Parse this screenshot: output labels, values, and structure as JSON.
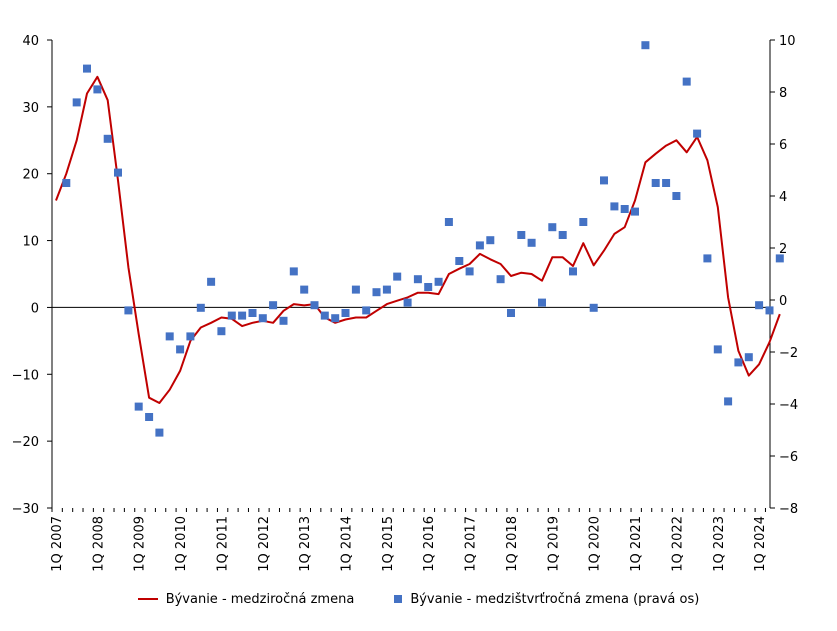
{
  "chart_data": {
    "type": "line",
    "title": "",
    "xlabel": "",
    "ylabel": "",
    "ylabel_right": "",
    "ylim": [
      -30,
      40
    ],
    "y2lim": [
      -8,
      10
    ],
    "yticks": [
      -30,
      -20,
      -10,
      0,
      10,
      20,
      30,
      40
    ],
    "y2ticks": [
      -8,
      -6,
      -4,
      -2,
      0,
      2,
      4,
      6,
      8,
      10
    ],
    "x_tick_labels": [
      "1Q 2007",
      "1Q 2008",
      "1Q 2009",
      "1Q 2010",
      "1Q 2011",
      "1Q 2012",
      "1Q 2013",
      "1Q 2014",
      "1Q 2015",
      "1Q 2016",
      "1Q 2017",
      "1Q 2018",
      "1Q 2019",
      "1Q 2020",
      "1Q 2021",
      "1Q 2022",
      "1Q 2023",
      "1Q 2024"
    ],
    "colors": {
      "line": "#c00000",
      "markers": "#4472c4"
    },
    "series": [
      {
        "name": "Bývanie - medziročná zmena",
        "kind": "line",
        "axis": "left",
        "values": [
          16,
          20,
          25,
          32,
          34.5,
          31,
          19,
          6,
          -4,
          -13.5,
          -14.3,
          -12.3,
          -9.5,
          -5,
          -3,
          -2.3,
          -1.5,
          -1.7,
          -2.8,
          -2.3,
          -2,
          -2.3,
          -0.5,
          0.5,
          0.3,
          0.5,
          -1.5,
          -2.3,
          -1.8,
          -1.5,
          -1.5,
          -0.5,
          0.5,
          1,
          1.5,
          2.2,
          2.2,
          2,
          5,
          5.8,
          6.5,
          8,
          7.2,
          6.5,
          4.7,
          5.2,
          5,
          4,
          7.5,
          7.5,
          6.2,
          9.6,
          6.3,
          8.5,
          11,
          12,
          16,
          21.7,
          23,
          24.2,
          25,
          23.2,
          25.5,
          22,
          15,
          1.5,
          -6.5,
          -10.2,
          -8.5,
          -5.2,
          -1
        ]
      },
      {
        "name": "Bývanie - medzištvrťročná zmena (pravá os)",
        "kind": "scatter",
        "axis": "right",
        "values": [
          4.5,
          7.6,
          8.9,
          8.1,
          6.2,
          4.9,
          -0.4,
          -4.1,
          -4.5,
          -5.1,
          -1.4,
          -1.9,
          -1.4,
          -0.3,
          0.7,
          -1.2,
          -0.6,
          -0.6,
          -0.5,
          -0.7,
          -0.2,
          -0.8,
          1.1,
          0.4,
          -0.2,
          -0.6,
          -0.7,
          -0.5,
          0.4,
          -0.4,
          0.3,
          0.4,
          0.9,
          -0.1,
          0.8,
          0.5,
          0.7,
          3,
          1.5,
          1.1,
          2.1,
          2.3,
          0.8,
          -0.5,
          2.5,
          2.2,
          -0.1,
          2.8,
          2.5,
          1.1,
          3,
          -0.3,
          4.6,
          3.6,
          3.5,
          3.4,
          9.8,
          4.5,
          4.5,
          4,
          8.4,
          6.4,
          1.6,
          -1.9,
          -3.9,
          -2.4,
          -2.2,
          -0.2,
          -0.4,
          1.6
        ]
      }
    ],
    "legend_position": "bottom"
  }
}
